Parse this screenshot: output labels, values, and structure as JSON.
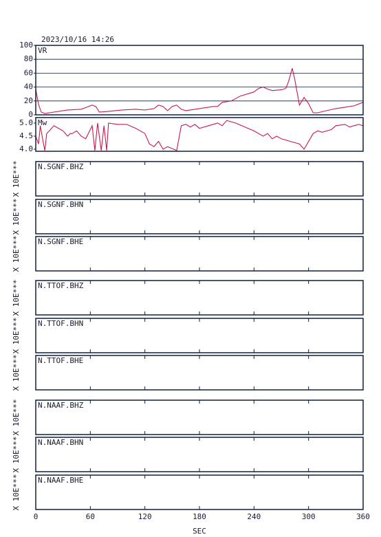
{
  "chart_data": {
    "title": "2023/10/16 14:26",
    "xlabel": "SEC",
    "xlim": [
      0,
      360
    ],
    "xticks": [
      0,
      60,
      120,
      180,
      240,
      300,
      360
    ],
    "panels": [
      {
        "type": "line",
        "name": "VR",
        "color": "#c8174a",
        "grid": true,
        "ylim": [
          0,
          100
        ],
        "yticks": [
          0,
          20,
          40,
          60,
          80,
          100
        ],
        "x": [
          0,
          3,
          6,
          10,
          20,
          35,
          50,
          58,
          62,
          66,
          70,
          80,
          95,
          110,
          120,
          130,
          135,
          140,
          145,
          150,
          155,
          160,
          165,
          170,
          180,
          195,
          200,
          205,
          215,
          225,
          240,
          245,
          250,
          255,
          260,
          270,
          275,
          278,
          282,
          285,
          290,
          295,
          300,
          305,
          310,
          320,
          330,
          340,
          350,
          360
        ],
        "values": [
          37,
          15,
          4,
          2,
          4,
          7,
          8,
          12,
          14,
          12,
          4,
          5,
          7,
          8,
          7,
          9,
          14,
          12,
          6,
          12,
          14,
          8,
          6,
          7,
          9,
          12,
          12,
          18,
          20,
          27,
          33,
          38,
          40,
          37,
          35,
          36,
          38,
          48,
          67,
          50,
          14,
          25,
          16,
          3,
          3,
          6,
          9,
          11,
          13,
          18
        ]
      },
      {
        "type": "line",
        "name": "Mw",
        "color": "#c8174a",
        "grid": false,
        "ylim": [
          3.92,
          5.21
        ],
        "yticks": [
          {
            "value": 4,
            "label": "4.0"
          },
          4.5,
          {
            "value": 5,
            "label": "5.0"
          }
        ],
        "x": [
          0,
          3,
          5,
          8,
          10,
          12,
          15,
          20,
          25,
          30,
          35,
          38,
          40,
          45,
          50,
          55,
          62,
          65,
          68,
          72,
          75,
          78,
          80,
          90,
          100,
          110,
          120,
          125,
          130,
          135,
          140,
          145,
          155,
          160,
          165,
          170,
          175,
          180,
          190,
          200,
          205,
          210,
          220,
          230,
          240,
          250,
          255,
          260,
          265,
          270,
          280,
          285,
          290,
          295,
          300,
          305,
          310,
          315,
          320,
          325,
          330,
          340,
          345,
          350,
          355,
          360
        ],
        "values": [
          4.5,
          4.2,
          4.9,
          4.3,
          3.95,
          4.6,
          4.7,
          4.9,
          4.8,
          4.7,
          4.5,
          4.6,
          4.6,
          4.7,
          4.5,
          4.4,
          4.9,
          3.95,
          5.0,
          3.95,
          4.9,
          3.95,
          5.0,
          4.95,
          4.95,
          4.8,
          4.6,
          4.2,
          4.1,
          4.3,
          4.0,
          4.1,
          3.95,
          4.9,
          4.95,
          4.85,
          4.95,
          4.8,
          4.9,
          5.0,
          4.9,
          5.1,
          5.0,
          4.85,
          4.7,
          4.5,
          4.6,
          4.4,
          4.5,
          4.4,
          4.3,
          4.25,
          4.2,
          4.0,
          4.3,
          4.6,
          4.7,
          4.65,
          4.7,
          4.75,
          4.9,
          4.95,
          4.85,
          4.9,
          4.95,
          4.9
        ]
      },
      {
        "type": "waveform",
        "label": "N.SGNF.BHZ",
        "ylabel": "X 10E***"
      },
      {
        "type": "waveform",
        "label": "N.SGNF.BHN",
        "ylabel": "X 10E***"
      },
      {
        "type": "waveform",
        "label": "N.SGNF.BHE",
        "ylabel": "X 10E***"
      },
      {
        "type": "waveform",
        "label": "N.TTOF.BHZ",
        "ylabel": "X 10E***"
      },
      {
        "type": "waveform",
        "label": "N.TTOF.BHN",
        "ylabel": "X 10E***"
      },
      {
        "type": "waveform",
        "label": "N.TTOF.BHE",
        "ylabel": "X 10E***"
      },
      {
        "type": "waveform",
        "label": "N.NAAF.BHZ",
        "ylabel": "X 10E***"
      },
      {
        "type": "waveform",
        "label": "N.NAAF.BHN",
        "ylabel": "X 10E***"
      },
      {
        "type": "waveform",
        "label": "N.NAAF.BHE",
        "ylabel": "X 10E***"
      }
    ]
  }
}
